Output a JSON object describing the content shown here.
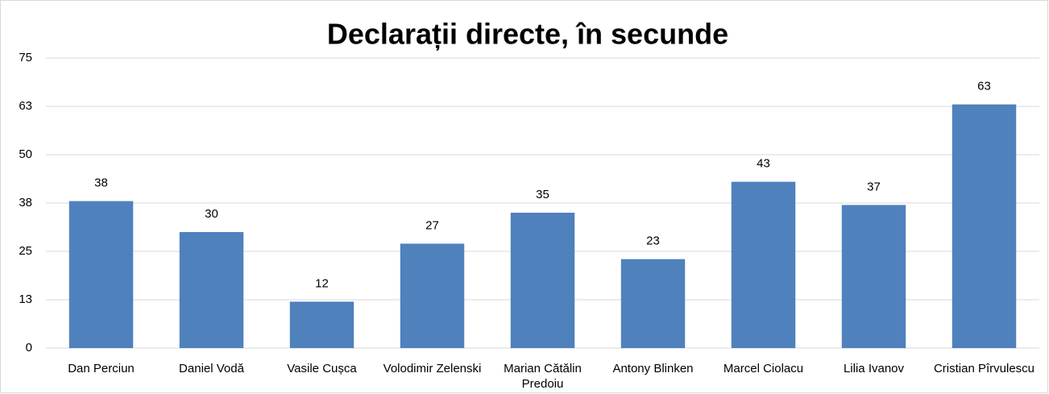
{
  "chart_data": {
    "type": "bar",
    "title": "Declarații directe, în secunde",
    "categories": [
      "Dan Perciun",
      "Daniel Vodă",
      "Vasile Cușca",
      "Volodimir Zelenski",
      "Marian Cătălin Predoiu",
      "Antony Blinken",
      "Marcel Ciolacu",
      "Lilia Ivanov",
      "Cristian Pîrvulescu"
    ],
    "values": [
      38,
      30,
      12,
      27,
      35,
      23,
      43,
      37,
      63
    ],
    "color": "#4f81bd",
    "ylim": [
      0,
      75
    ],
    "yticks": [
      0,
      {
        "value": 12.5,
        "label": "13"
      },
      25,
      {
        "value": 37.5,
        "label": "38"
      },
      50,
      {
        "value": 62.5,
        "label": "63"
      },
      75
    ],
    "grid": true
  }
}
